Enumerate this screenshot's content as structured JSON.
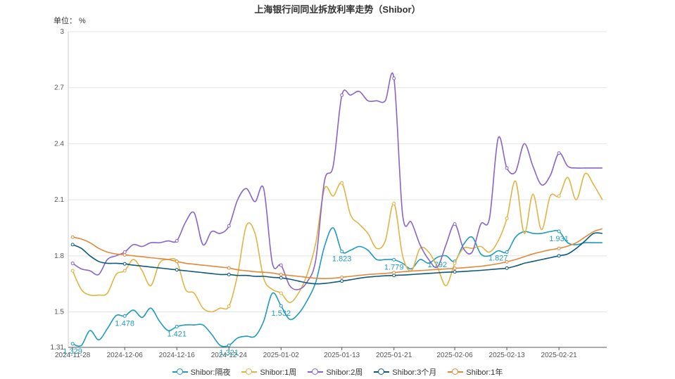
{
  "chart_data": {
    "type": "line",
    "title": "上海银行间同业拆放利率走势（Shibor）",
    "unit_label": "单位：  %",
    "ylim": [
      1.31,
      3
    ],
    "y_ticks": [
      "1.31",
      "1.5",
      "1.8",
      "2.1",
      "2.4",
      "2.7",
      "3"
    ],
    "x_ticks": [
      "2024-11-28",
      "2024-12-06",
      "2024-12-16",
      "2024-12-24",
      "2025-01-02",
      "2025-01-13",
      "2025-01-21",
      "2025-02-06",
      "2025-02-13",
      "2025-02-21"
    ],
    "x": [
      "2024-11-28",
      "2024-11-29",
      "2024-12-02",
      "2024-12-03",
      "2024-12-04",
      "2024-12-05",
      "2024-12-06",
      "2024-12-09",
      "2024-12-10",
      "2024-12-11",
      "2024-12-12",
      "2024-12-13",
      "2024-12-16",
      "2024-12-17",
      "2024-12-18",
      "2024-12-19",
      "2024-12-20",
      "2024-12-23",
      "2024-12-24",
      "2024-12-25",
      "2024-12-26",
      "2024-12-27",
      "2024-12-30",
      "2024-12-31",
      "2025-01-02",
      "2025-01-03",
      "2025-01-06",
      "2025-01-07",
      "2025-01-08",
      "2025-01-09",
      "2025-01-10",
      "2025-01-13",
      "2025-01-14",
      "2025-01-15",
      "2025-01-16",
      "2025-01-17",
      "2025-01-20",
      "2025-01-21",
      "2025-01-22",
      "2025-01-23",
      "2025-01-24",
      "2025-01-26",
      "2025-01-27",
      "2025-02-05",
      "2025-02-06",
      "2025-02-07",
      "2025-02-08",
      "2025-02-10",
      "2025-02-11",
      "2025-02-12",
      "2025-02-13",
      "2025-02-14",
      "2025-02-17",
      "2025-02-18",
      "2025-02-19",
      "2025-02-20",
      "2025-02-21",
      "2025-02-24",
      "2025-02-25",
      "2025-02-26",
      "2025-02-27",
      "2025-02-28"
    ],
    "series": [
      {
        "name": "Shibor:隔夜",
        "color": "#1f9bbd",
        "values": [
          1.329,
          1.32,
          1.4,
          1.35,
          1.41,
          1.48,
          1.478,
          1.51,
          1.47,
          1.52,
          1.45,
          1.4,
          1.421,
          1.43,
          1.43,
          1.43,
          1.38,
          1.32,
          1.321,
          1.36,
          1.37,
          1.37,
          1.45,
          1.6,
          1.532,
          1.46,
          1.49,
          1.56,
          1.66,
          1.85,
          1.95,
          1.823,
          1.83,
          1.85,
          1.83,
          1.78,
          1.78,
          1.779,
          1.76,
          1.73,
          1.78,
          1.76,
          1.792,
          1.8,
          1.77,
          1.86,
          1.9,
          1.81,
          1.8,
          1.827,
          1.82,
          1.9,
          1.93,
          1.92,
          1.92,
          1.93,
          1.931,
          1.87,
          1.86,
          1.87,
          1.87,
          1.87
        ]
      },
      {
        "name": "Shibor:1周",
        "color": "#e0b445",
        "values": [
          1.72,
          1.62,
          1.59,
          1.59,
          1.6,
          1.7,
          1.72,
          1.78,
          1.72,
          1.64,
          1.76,
          1.78,
          1.77,
          1.62,
          1.6,
          1.52,
          1.5,
          1.52,
          1.53,
          1.7,
          1.96,
          1.92,
          1.68,
          1.62,
          1.6,
          1.55,
          1.6,
          1.7,
          1.87,
          2.16,
          2.12,
          2.19,
          2.02,
          1.97,
          1.92,
          1.84,
          1.88,
          2.08,
          1.8,
          1.72,
          1.84,
          1.82,
          1.74,
          1.64,
          1.76,
          1.84,
          1.84,
          1.85,
          1.82,
          1.88,
          2.0,
          2.2,
          1.92,
          2.13,
          1.94,
          2.12,
          2.12,
          2.22,
          2.1,
          2.24,
          2.18,
          2.1
        ]
      },
      {
        "name": "Shibor:2周",
        "color": "#8a63c7",
        "values": [
          1.76,
          1.73,
          1.72,
          1.7,
          1.78,
          1.8,
          1.82,
          1.86,
          1.85,
          1.87,
          1.87,
          1.88,
          1.88,
          1.98,
          2.03,
          1.86,
          1.93,
          1.92,
          1.96,
          2.1,
          2.16,
          2.09,
          2.16,
          1.76,
          1.75,
          1.64,
          1.62,
          1.66,
          1.78,
          2.2,
          2.28,
          2.66,
          2.66,
          2.68,
          2.63,
          2.63,
          2.63,
          2.75,
          2.02,
          1.98,
          1.86,
          1.78,
          1.74,
          1.86,
          1.97,
          1.84,
          1.82,
          1.97,
          2.0,
          2.43,
          2.27,
          2.25,
          2.4,
          2.28,
          2.18,
          2.23,
          2.35,
          2.28,
          2.27,
          2.27,
          2.27,
          2.27
        ]
      },
      {
        "name": "Shibor:3个月",
        "color": "#0d5a7a",
        "values": [
          1.86,
          1.84,
          1.8,
          1.77,
          1.76,
          1.76,
          1.757,
          1.75,
          1.745,
          1.74,
          1.735,
          1.73,
          1.725,
          1.72,
          1.715,
          1.71,
          1.705,
          1.7,
          1.7,
          1.695,
          1.695,
          1.69,
          1.69,
          1.685,
          1.682,
          1.675,
          1.665,
          1.655,
          1.65,
          1.652,
          1.658,
          1.665,
          1.672,
          1.68,
          1.686,
          1.69,
          1.693,
          1.695,
          1.697,
          1.7,
          1.703,
          1.706,
          1.709,
          1.712,
          1.714,
          1.716,
          1.719,
          1.722,
          1.726,
          1.73,
          1.734,
          1.745,
          1.76,
          1.77,
          1.78,
          1.79,
          1.8,
          1.81,
          1.84,
          1.88,
          1.92,
          1.92
        ]
      },
      {
        "name": "Shibor:1年",
        "color": "#e08a3a",
        "values": [
          1.9,
          1.89,
          1.87,
          1.84,
          1.82,
          1.81,
          1.805,
          1.8,
          1.795,
          1.79,
          1.785,
          1.78,
          1.77,
          1.76,
          1.755,
          1.75,
          1.745,
          1.74,
          1.735,
          1.725,
          1.72,
          1.715,
          1.712,
          1.708,
          1.7,
          1.695,
          1.69,
          1.685,
          1.68,
          1.678,
          1.68,
          1.685,
          1.69,
          1.695,
          1.7,
          1.703,
          1.706,
          1.71,
          1.715,
          1.718,
          1.721,
          1.724,
          1.727,
          1.73,
          1.733,
          1.736,
          1.74,
          1.744,
          1.75,
          1.758,
          1.768,
          1.78,
          1.795,
          1.81,
          1.822,
          1.832,
          1.84,
          1.852,
          1.87,
          1.9,
          1.93,
          1.945
        ]
      }
    ],
    "data_labels": [
      {
        "series": 0,
        "index": 0,
        "text": "1.329"
      },
      {
        "series": 0,
        "index": 6,
        "text": "1.478"
      },
      {
        "series": 0,
        "index": 12,
        "text": "1.421"
      },
      {
        "series": 0,
        "index": 18,
        "text": "1.321"
      },
      {
        "series": 0,
        "index": 24,
        "text": "1.532"
      },
      {
        "series": 0,
        "index": 31,
        "text": "1.823"
      },
      {
        "series": 0,
        "index": 37,
        "text": "1.779"
      },
      {
        "series": 0,
        "index": 42,
        "text": "1.792"
      },
      {
        "series": 0,
        "index": 49,
        "text": "1.827"
      },
      {
        "series": 0,
        "index": 56,
        "text": "1.931"
      }
    ],
    "grid": true,
    "legend_position": "bottom"
  }
}
